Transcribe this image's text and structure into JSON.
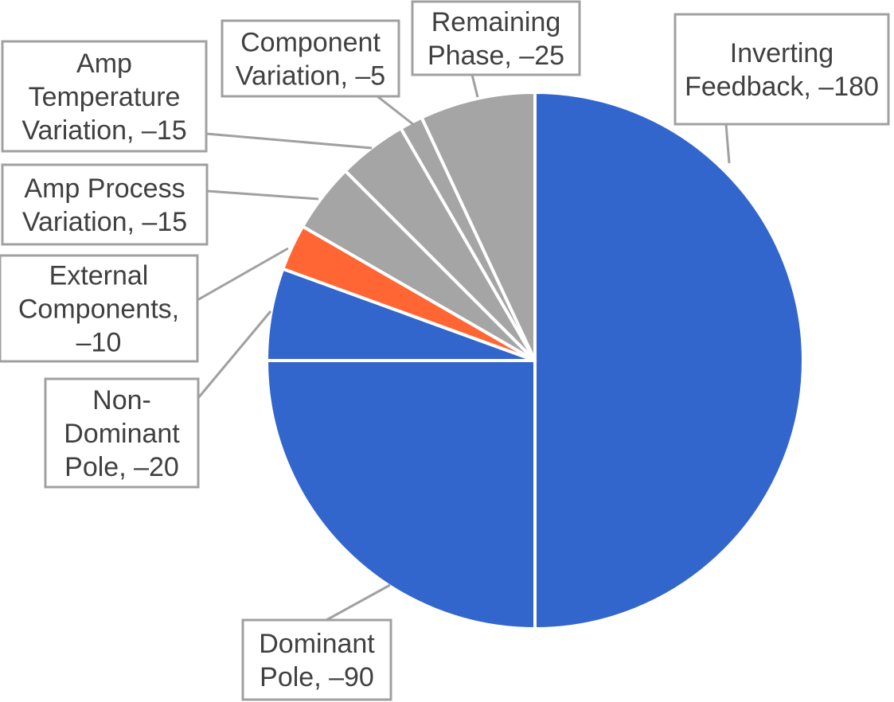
{
  "chart_data": {
    "type": "pie",
    "title": "",
    "legend": "none",
    "slices": [
      {
        "label": "Inverting Feedback",
        "value": -180,
        "magnitude": 180,
        "color": "#3366cc",
        "label_lines": [
          "Inverting",
          "Feedback, –180"
        ]
      },
      {
        "label": "Dominant Pole",
        "value": -90,
        "magnitude": 90,
        "color": "#3366cc",
        "label_lines": [
          "Dominant",
          "Pole, –90"
        ]
      },
      {
        "label": "Non-Dominant Pole",
        "value": -20,
        "magnitude": 20,
        "color": "#3366cc",
        "label_lines": [
          "Non-",
          "Dominant",
          "Pole, –20"
        ]
      },
      {
        "label": "External Components",
        "value": -10,
        "magnitude": 10,
        "color": "#ff6633",
        "label_lines": [
          "External",
          "Components,",
          "–10"
        ]
      },
      {
        "label": "Amp Process Variation",
        "value": -15,
        "magnitude": 15,
        "color": "#a5a5a5",
        "label_lines": [
          "Amp Process",
          "Variation, –15"
        ]
      },
      {
        "label": "Amp Temperature Variation",
        "value": -15,
        "magnitude": 15,
        "color": "#a5a5a5",
        "label_lines": [
          "Amp",
          "Temperature",
          "Variation, –15"
        ]
      },
      {
        "label": "Component Variation",
        "value": -5,
        "magnitude": 5,
        "color": "#a5a5a5",
        "label_lines": [
          "Component",
          "Variation, –5"
        ]
      },
      {
        "label": "Remaining Phase",
        "value": -25,
        "magnitude": 25,
        "color": "#a5a5a5",
        "label_lines": [
          "Remaining",
          "Phase, –25"
        ]
      }
    ]
  }
}
